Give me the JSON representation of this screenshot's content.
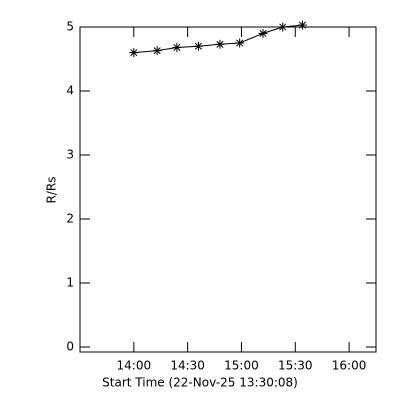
{
  "chart_data": {
    "type": "line",
    "xlabel": "Start Time (22-Nov-25 13:30:08)",
    "ylabel": "R/Rs",
    "x": [
      "14:00",
      "14:13",
      "14:24",
      "14:36",
      "14:48",
      "14:59",
      "15:12",
      "15:23",
      "15:34"
    ],
    "series": [
      {
        "color": "#000000",
        "values": [
          4.6,
          4.63,
          4.68,
          4.7,
          4.73,
          4.75,
          4.9,
          5.0,
          5.03
        ]
      }
    ],
    "xlim": [
      "13:30",
      "16:15"
    ],
    "xticks": [
      "14:00",
      "14:30",
      "15:00",
      "15:30",
      "16:00"
    ],
    "ylim": [
      0,
      5
    ],
    "yticks": [
      0,
      1,
      2,
      3,
      4,
      5
    ],
    "marker": "asterisk"
  }
}
